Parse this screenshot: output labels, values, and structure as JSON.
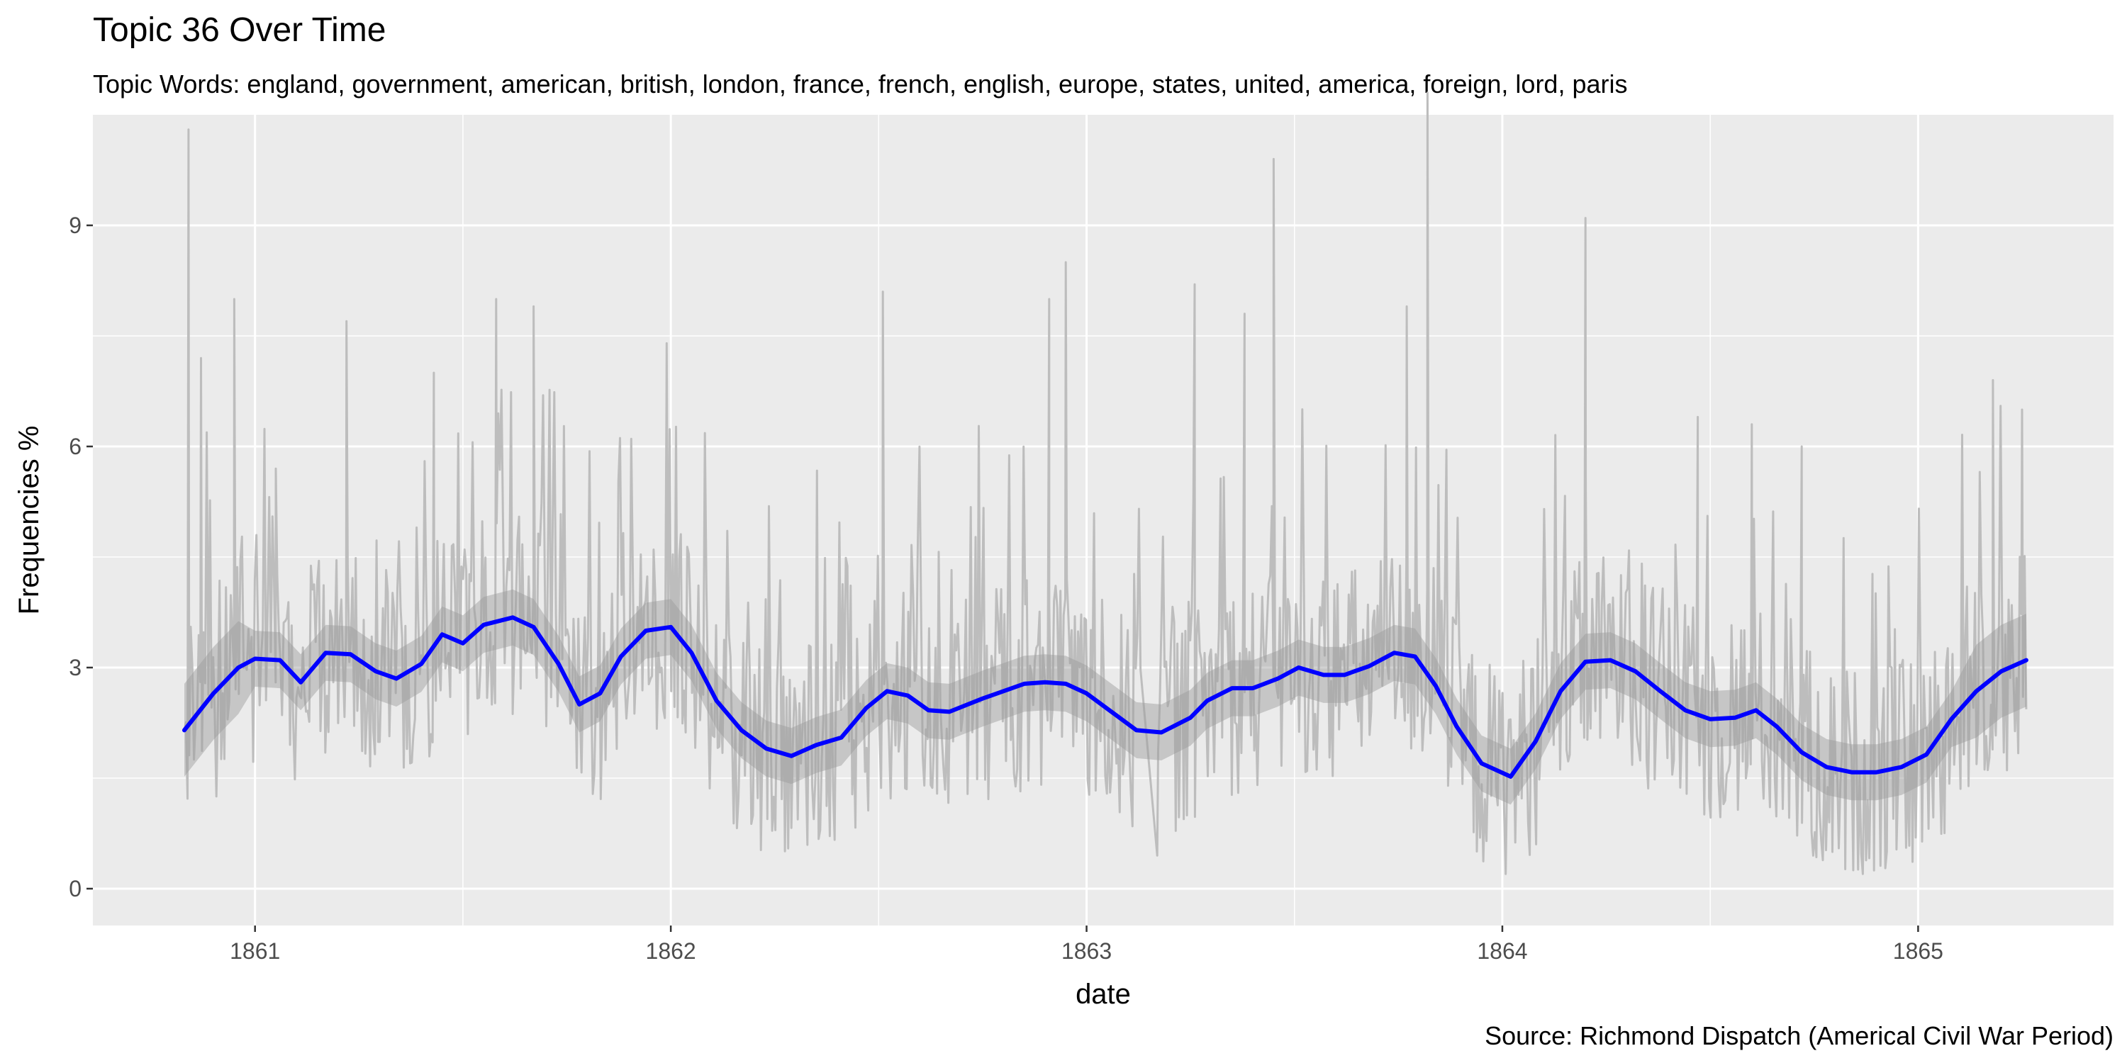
{
  "chart_data": {
    "type": "line",
    "title": "Topic 36 Over Time",
    "subtitle": "Topic Words: england, government, american, british, london, france, french, english, europe, states, united, america, foreign, lord, paris",
    "xlabel": "date",
    "ylabel": "Frequencies %",
    "caption": "Source: Richmond Dispatch (Americal Civil War Period)",
    "xlim": [
      1860.61,
      1865.47
    ],
    "ylim": [
      -0.5,
      10.5
    ],
    "x_ticks": [
      {
        "value": 1861,
        "label": "1861"
      },
      {
        "value": 1862,
        "label": "1862"
      },
      {
        "value": 1863,
        "label": "1863"
      },
      {
        "value": 1864,
        "label": "1864"
      },
      {
        "value": 1865,
        "label": "1865"
      }
    ],
    "y_ticks": [
      {
        "value": 0,
        "label": "0"
      },
      {
        "value": 3,
        "label": "3"
      },
      {
        "value": 6,
        "label": "6"
      },
      {
        "value": 9,
        "label": "9"
      }
    ],
    "grid": true,
    "colors": {
      "panel": "#ebebeb",
      "grid": "#ffffff",
      "raw_line": "#bdbdbd",
      "smooth_line": "#0000ff",
      "ribbon": "#999999"
    },
    "series": [
      {
        "kind": "raw",
        "x_start": 1860.83,
        "x_end": 1865.26,
        "gap": [
          1863.13,
          1863.17
        ],
        "approx_range": [
          0.2,
          10.8
        ],
        "peaks": [
          [
            1860.84,
            10.3
          ],
          [
            1860.87,
            7.2
          ],
          [
            1860.95,
            8.0
          ],
          [
            1861.05,
            5.7
          ],
          [
            1861.22,
            7.7
          ],
          [
            1861.43,
            7.0
          ],
          [
            1861.58,
            8.0
          ],
          [
            1861.67,
            7.9
          ],
          [
            1861.99,
            7.4
          ],
          [
            1862.51,
            8.1
          ],
          [
            1862.91,
            8.0
          ],
          [
            1862.95,
            8.5
          ],
          [
            1863.26,
            8.2
          ],
          [
            1863.38,
            7.8
          ],
          [
            1863.45,
            9.9
          ],
          [
            1863.77,
            7.9
          ],
          [
            1863.82,
            10.8
          ],
          [
            1864.2,
            9.1
          ],
          [
            1864.47,
            6.4
          ],
          [
            1864.6,
            6.3
          ],
          [
            1864.72,
            6.0
          ],
          [
            1865.18,
            6.9
          ],
          [
            1865.25,
            6.5
          ]
        ]
      },
      {
        "kind": "smooth",
        "x": [
          1860.83,
          1860.9,
          1860.96,
          1861.0,
          1861.06,
          1861.11,
          1861.17,
          1861.23,
          1861.29,
          1861.34,
          1861.4,
          1861.45,
          1861.5,
          1861.55,
          1861.62,
          1861.67,
          1861.73,
          1861.78,
          1861.83,
          1861.88,
          1861.94,
          1862.0,
          1862.05,
          1862.11,
          1862.17,
          1862.23,
          1862.29,
          1862.35,
          1862.41,
          1862.47,
          1862.52,
          1862.57,
          1862.62,
          1862.67,
          1862.75,
          1862.8,
          1862.85,
          1862.9,
          1862.95,
          1863.0,
          1863.06,
          1863.12,
          1863.18,
          1863.25,
          1863.29,
          1863.35,
          1863.4,
          1863.46,
          1863.51,
          1863.57,
          1863.62,
          1863.68,
          1863.74,
          1863.79,
          1863.84,
          1863.89,
          1863.95,
          1864.02,
          1864.08,
          1864.14,
          1864.2,
          1864.26,
          1864.32,
          1864.38,
          1864.44,
          1864.5,
          1864.56,
          1864.61,
          1864.66,
          1864.72,
          1864.78,
          1864.84,
          1864.9,
          1864.96,
          1865.02,
          1865.08,
          1865.14,
          1865.2,
          1865.26
        ],
        "y": [
          2.15,
          2.65,
          3.0,
          3.12,
          3.1,
          2.8,
          3.2,
          3.18,
          2.95,
          2.85,
          3.05,
          3.45,
          3.33,
          3.58,
          3.68,
          3.55,
          3.05,
          2.5,
          2.65,
          3.15,
          3.5,
          3.55,
          3.2,
          2.55,
          2.15,
          1.9,
          1.8,
          1.95,
          2.05,
          2.45,
          2.68,
          2.62,
          2.42,
          2.4,
          2.58,
          2.68,
          2.78,
          2.8,
          2.78,
          2.65,
          2.4,
          2.15,
          2.12,
          2.32,
          2.55,
          2.72,
          2.72,
          2.85,
          3.0,
          2.9,
          2.9,
          3.02,
          3.2,
          3.15,
          2.75,
          2.2,
          1.7,
          1.52,
          2.0,
          2.68,
          3.08,
          3.1,
          2.95,
          2.68,
          2.42,
          2.3,
          2.32,
          2.42,
          2.2,
          1.85,
          1.65,
          1.58,
          1.58,
          1.65,
          1.82,
          2.3,
          2.68,
          2.95,
          3.1
        ],
        "ribbon_halfwidth": 0.38
      }
    ]
  }
}
